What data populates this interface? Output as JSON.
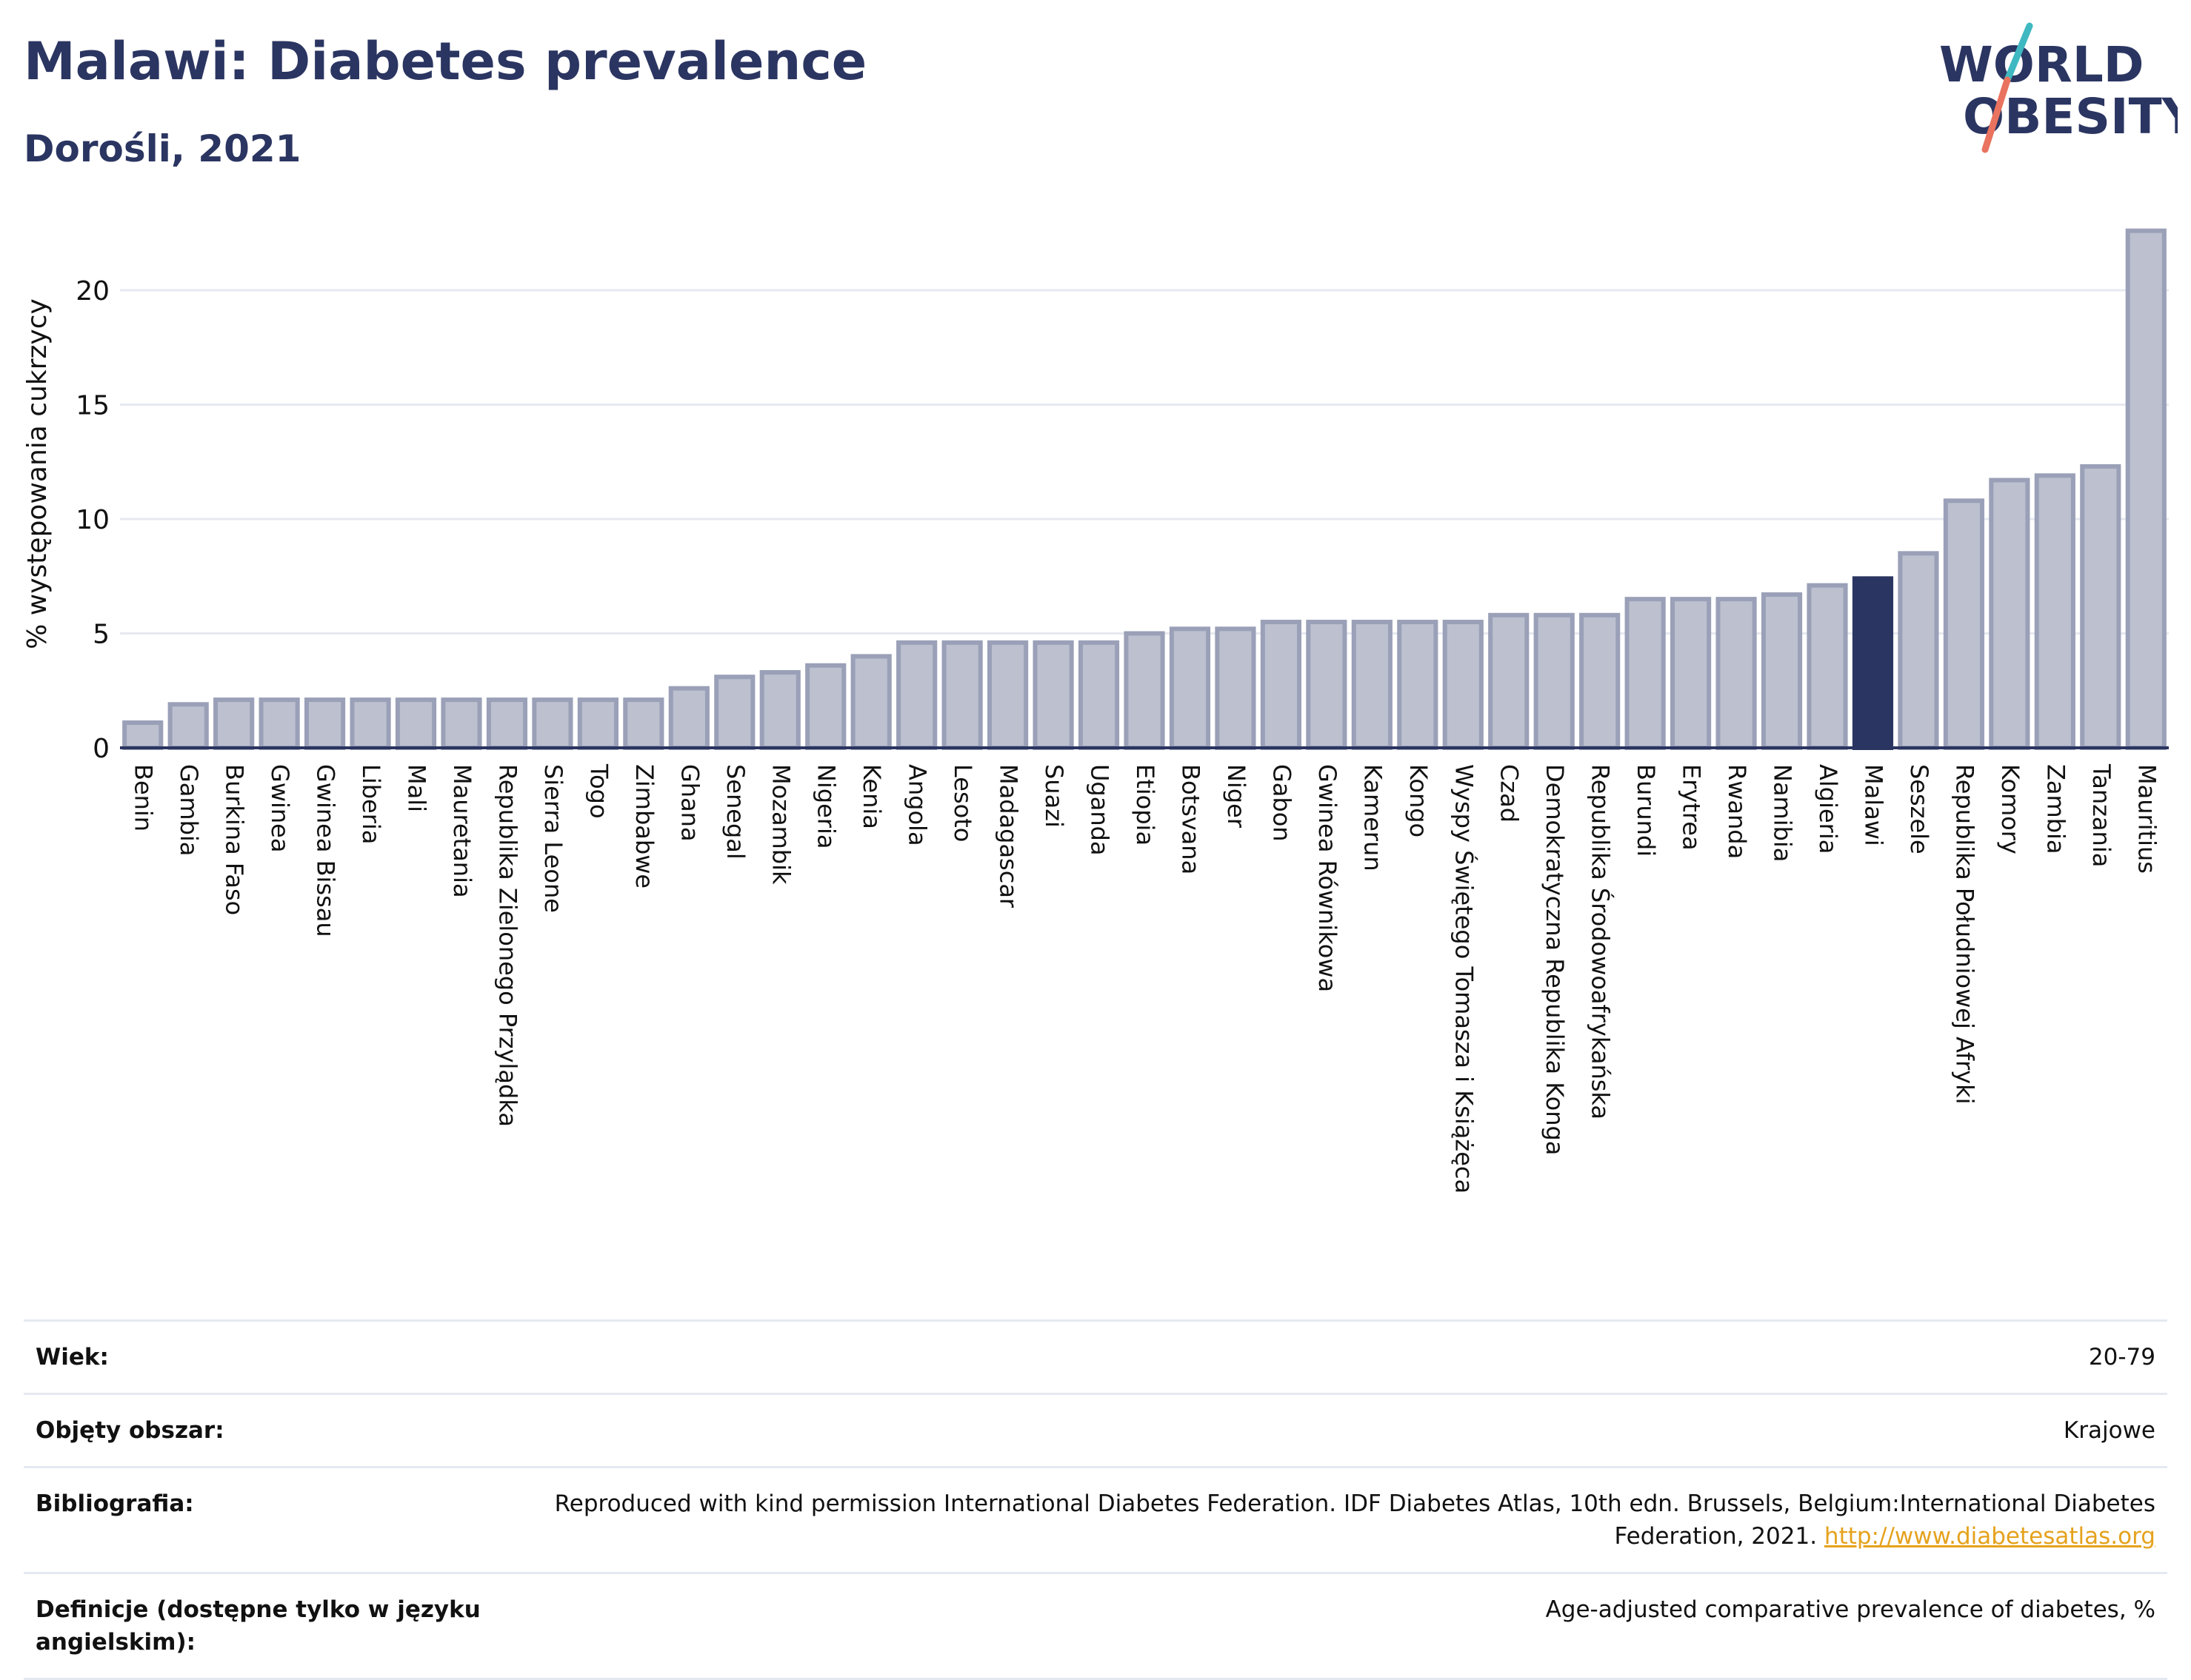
{
  "header": {
    "title": "Malawi: Diabetes prevalence",
    "subtitle": "Dorośli, 2021"
  },
  "logo": {
    "line1": "WORLD",
    "line2": "OBESITY",
    "slash_colors": [
      "#3fb8c1",
      "#e9735f"
    ]
  },
  "colors": {
    "highlight": "#2b3561",
    "bar_fill": "#bcc0cf",
    "bar_stroke": "#9aa0b7",
    "text": "#2b3561"
  },
  "chart_data": {
    "type": "bar",
    "title": "Malawi: Diabetes prevalence",
    "subtitle": "Dorośli, 2021",
    "xlabel": "",
    "ylabel": "% występowania cukrzycy",
    "ylim": [
      0,
      23
    ],
    "yticks": [
      0,
      5,
      10,
      15,
      20
    ],
    "grid": true,
    "highlight": "Malawi",
    "categories": [
      "Benin",
      "Gambia",
      "Burkina Faso",
      "Gwinea",
      "Gwinea Bissau",
      "Liberia",
      "Mali",
      "Mauretania",
      "Republika Zielonego Przylądka",
      "Sierra Leone",
      "Togo",
      "Zimbabwe",
      "Ghana",
      "Senegal",
      "Mozambik",
      "Nigeria",
      "Kenia",
      "Angola",
      "Lesoto",
      "Madagascar",
      "Suazi",
      "Uganda",
      "Etiopia",
      "Botsvana",
      "Niger",
      "Gabon",
      "Gwinea Równikowa",
      "Kamerun",
      "Kongo",
      "Wyspy Świętego Tomasza i Książęca",
      "Czad",
      "Demokratyczna Republika Konga",
      "Republika Środowoafrykańska",
      "Burundi",
      "Erytrea",
      "Rwanda",
      "Namibia",
      "Algieria",
      "Malawi",
      "Seszele",
      "Republika Południowej Afryki",
      "Komory",
      "Zambia",
      "Tanzania",
      "Mauritius"
    ],
    "values": [
      1.1,
      1.9,
      2.1,
      2.1,
      2.1,
      2.1,
      2.1,
      2.1,
      2.1,
      2.1,
      2.1,
      2.1,
      2.6,
      3.1,
      3.3,
      3.6,
      4.0,
      4.6,
      4.6,
      4.6,
      4.6,
      4.6,
      5.0,
      5.2,
      5.2,
      5.5,
      5.5,
      5.5,
      5.5,
      5.5,
      5.8,
      5.8,
      5.8,
      6.5,
      6.5,
      6.5,
      6.7,
      7.1,
      7.4,
      8.5,
      10.8,
      11.7,
      11.9,
      12.3,
      22.6
    ]
  },
  "info": {
    "rows": [
      {
        "label": "Wiek:",
        "value": "20-79"
      },
      {
        "label": "Objęty obszar:",
        "value": "Krajowe"
      },
      {
        "label": "Bibliografia:",
        "value": "Reproduced with kind permission International Diabetes Federation.  IDF Diabetes Atlas, 10th edn. Brussels, Belgium:International Diabetes Federation, 2021.",
        "link": "http://www.diabetesatlas.org"
      },
      {
        "label": "Definicje (dostępne tylko w języku angielskim):",
        "value": "Age-adjusted comparative prevalence of diabetes, %"
      }
    ]
  }
}
